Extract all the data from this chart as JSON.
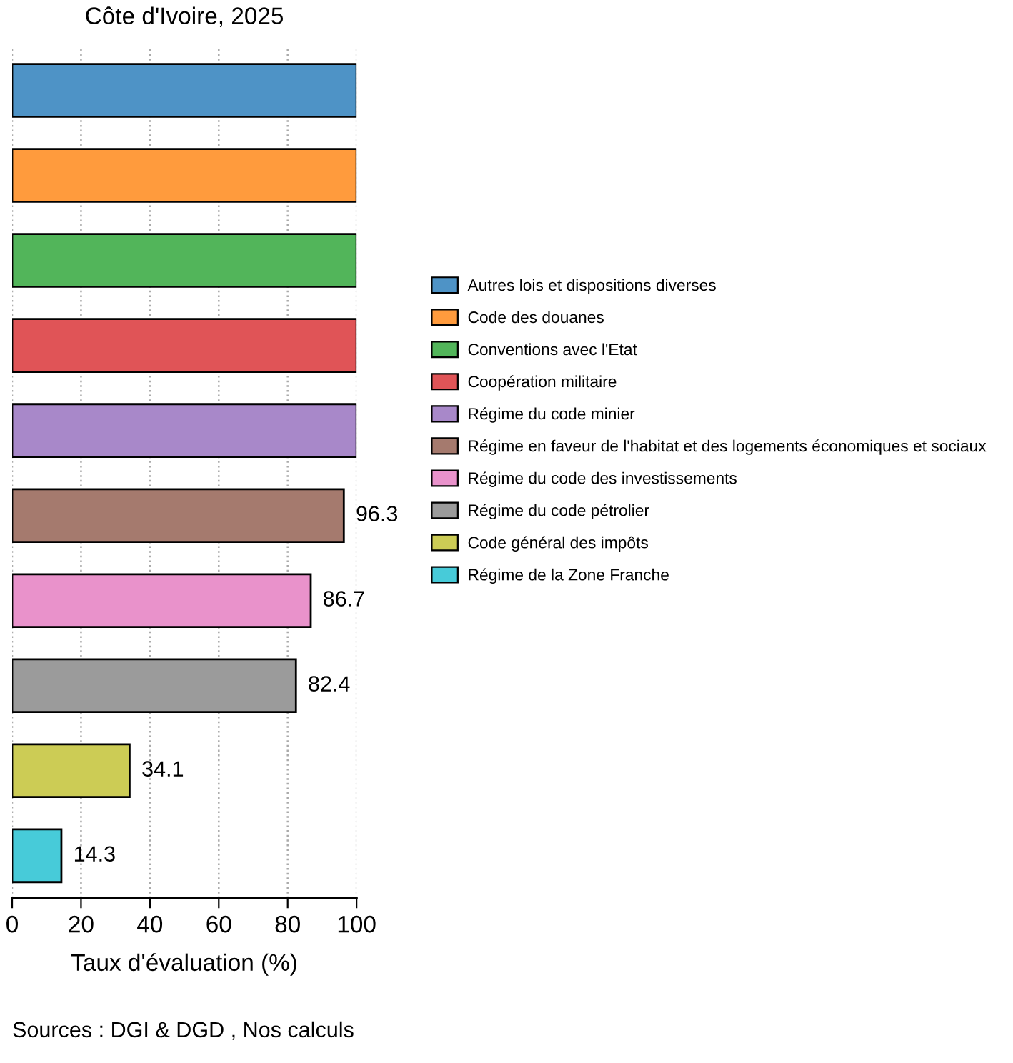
{
  "chart_data": {
    "type": "bar",
    "orientation": "horizontal",
    "title": "Côte d'Ivoire, 2025",
    "xlabel": "Taux d'évaluation (%)",
    "categories": [
      null,
      null,
      null,
      null,
      null,
      null,
      null,
      null,
      null,
      null
    ],
    "series": [
      {
        "name": "Autres lois et dispositions diverses",
        "color": "#4e93c6",
        "values": [
          100,
          null,
          null,
          null,
          null,
          null,
          null,
          null,
          null,
          null
        ]
      },
      {
        "name": "Code des douanes",
        "color": "#ff9b3d",
        "values": [
          null,
          100,
          null,
          null,
          null,
          null,
          null,
          null,
          null,
          null
        ]
      },
      {
        "name": "Conventions avec l'Etat",
        "color": "#52b55a",
        "values": [
          null,
          null,
          100,
          null,
          null,
          null,
          null,
          null,
          null,
          null
        ]
      },
      {
        "name": "Coopération militaire",
        "color": "#e05457",
        "values": [
          null,
          null,
          null,
          100,
          null,
          null,
          null,
          null,
          null,
          null
        ]
      },
      {
        "name": "Régime du code minier",
        "color": "#a888c9",
        "values": [
          null,
          null,
          null,
          null,
          100,
          null,
          null,
          null,
          null,
          null
        ]
      },
      {
        "name": "Régime en faveur de l'habitat et des logements économiques et sociaux",
        "color": "#a57a6e",
        "values": [
          null,
          null,
          null,
          null,
          null,
          96.3,
          null,
          null,
          null,
          null
        ]
      },
      {
        "name": "Régime du code des investissements",
        "color": "#e992cb",
        "values": [
          null,
          null,
          null,
          null,
          null,
          null,
          86.7,
          null,
          null,
          null
        ]
      },
      {
        "name": "Régime du code pétrolier",
        "color": "#9b9b9b",
        "values": [
          null,
          null,
          null,
          null,
          null,
          null,
          null,
          82.4,
          null,
          null
        ]
      },
      {
        "name": "Code général des impôts",
        "color": "#cccc55",
        "values": [
          null,
          null,
          null,
          null,
          null,
          null,
          null,
          null,
          34.1,
          null
        ]
      },
      {
        "name": "Régime de la Zone Franche",
        "color": "#47cbd9",
        "values": [
          null,
          null,
          null,
          null,
          null,
          null,
          null,
          null,
          null,
          14.3
        ]
      }
    ],
    "value_labels": [
      null,
      null,
      null,
      null,
      null,
      "96.3",
      "86.7",
      "82.4",
      "34.1",
      "14.3"
    ],
    "xlim": [
      0,
      100
    ],
    "xticks": [
      0,
      20,
      40,
      60,
      80,
      100
    ],
    "grid": "x",
    "legend": "right",
    "tick_labels": "x",
    "annotations": [
      "Sources : DGI & DGD , Nos calculs"
    ]
  }
}
